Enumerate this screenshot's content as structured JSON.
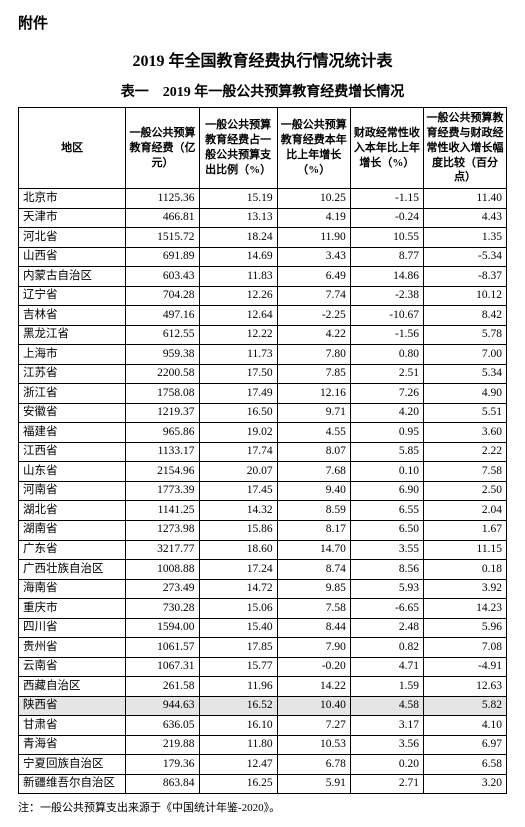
{
  "attachment_label": "附件",
  "main_title": "2019 年全国教育经费执行情况统计表",
  "sub_title": "表一　2019 年一般公共预算教育经费增长情况",
  "table": {
    "columns": [
      "地区",
      "一般公共预算教育经费（亿元）",
      "一般公共预算教育经费占一般公共预算支出比例（%）",
      "一般公共预算教育经费本年比上年增长（%）",
      "财政经常性收入本年比上年增长（%）",
      "一般公共预算教育经费与财政经常性收入增长幅度比较（百分点）"
    ],
    "rows": [
      {
        "r": [
          "北京市",
          "1125.36",
          "15.19",
          "10.25",
          "-1.15",
          "11.40"
        ]
      },
      {
        "r": [
          "天津市",
          "466.81",
          "13.13",
          "4.19",
          "-0.24",
          "4.43"
        ]
      },
      {
        "r": [
          "河北省",
          "1515.72",
          "18.24",
          "11.90",
          "10.55",
          "1.35"
        ]
      },
      {
        "r": [
          "山西省",
          "691.89",
          "14.69",
          "3.43",
          "8.77",
          "-5.34"
        ]
      },
      {
        "r": [
          "内蒙古自治区",
          "603.43",
          "11.83",
          "6.49",
          "14.86",
          "-8.37"
        ]
      },
      {
        "r": [
          "辽宁省",
          "704.28",
          "12.26",
          "7.74",
          "-2.38",
          "10.12"
        ]
      },
      {
        "r": [
          "吉林省",
          "497.16",
          "12.64",
          "-2.25",
          "-10.67",
          "8.42"
        ]
      },
      {
        "r": [
          "黑龙江省",
          "612.55",
          "12.22",
          "4.22",
          "-1.56",
          "5.78"
        ]
      },
      {
        "r": [
          "上海市",
          "959.38",
          "11.73",
          "7.80",
          "0.80",
          "7.00"
        ]
      },
      {
        "r": [
          "江苏省",
          "2200.58",
          "17.50",
          "7.85",
          "2.51",
          "5.34"
        ]
      },
      {
        "r": [
          "浙江省",
          "1758.08",
          "17.49",
          "12.16",
          "7.26",
          "4.90"
        ]
      },
      {
        "r": [
          "安徽省",
          "1219.37",
          "16.50",
          "9.71",
          "4.20",
          "5.51"
        ]
      },
      {
        "r": [
          "福建省",
          "965.86",
          "19.02",
          "4.55",
          "0.95",
          "3.60"
        ]
      },
      {
        "r": [
          "江西省",
          "1133.17",
          "17.74",
          "8.07",
          "5.85",
          "2.22"
        ]
      },
      {
        "r": [
          "山东省",
          "2154.96",
          "20.07",
          "7.68",
          "0.10",
          "7.58"
        ]
      },
      {
        "r": [
          "河南省",
          "1773.39",
          "17.45",
          "9.40",
          "6.90",
          "2.50"
        ]
      },
      {
        "r": [
          "湖北省",
          "1141.25",
          "14.32",
          "8.59",
          "6.55",
          "2.04"
        ]
      },
      {
        "r": [
          "湖南省",
          "1273.98",
          "15.86",
          "8.17",
          "6.50",
          "1.67"
        ]
      },
      {
        "r": [
          "广东省",
          "3217.77",
          "18.60",
          "14.70",
          "3.55",
          "11.15"
        ]
      },
      {
        "r": [
          "广西壮族自治区",
          "1008.88",
          "17.24",
          "8.74",
          "8.56",
          "0.18"
        ]
      },
      {
        "r": [
          "海南省",
          "273.49",
          "14.72",
          "9.85",
          "5.93",
          "3.92"
        ]
      },
      {
        "r": [
          "重庆市",
          "730.28",
          "15.06",
          "7.58",
          "-6.65",
          "14.23"
        ]
      },
      {
        "r": [
          "四川省",
          "1594.00",
          "15.40",
          "8.44",
          "2.48",
          "5.96"
        ]
      },
      {
        "r": [
          "贵州省",
          "1061.57",
          "17.85",
          "7.90",
          "0.82",
          "7.08"
        ]
      },
      {
        "r": [
          "云南省",
          "1067.31",
          "15.77",
          "-0.20",
          "4.71",
          "-4.91"
        ]
      },
      {
        "r": [
          "西藏自治区",
          "261.58",
          "11.96",
          "14.22",
          "1.59",
          "12.63"
        ]
      },
      {
        "r": [
          "陕西省",
          "944.63",
          "16.52",
          "10.40",
          "4.58",
          "5.82"
        ],
        "hl": true
      },
      {
        "r": [
          "甘肃省",
          "636.05",
          "16.10",
          "7.27",
          "3.17",
          "4.10"
        ]
      },
      {
        "r": [
          "青海省",
          "219.88",
          "11.80",
          "10.53",
          "3.56",
          "6.97"
        ]
      },
      {
        "r": [
          "宁夏回族自治区",
          "179.36",
          "12.47",
          "6.78",
          "0.20",
          "6.58"
        ]
      },
      {
        "r": [
          "新疆维吾尔自治区",
          "863.84",
          "16.25",
          "5.91",
          "2.71",
          "3.20"
        ]
      }
    ]
  },
  "footnote": "注：一般公共预算支出来源于《中国统计年鉴-2020》。"
}
